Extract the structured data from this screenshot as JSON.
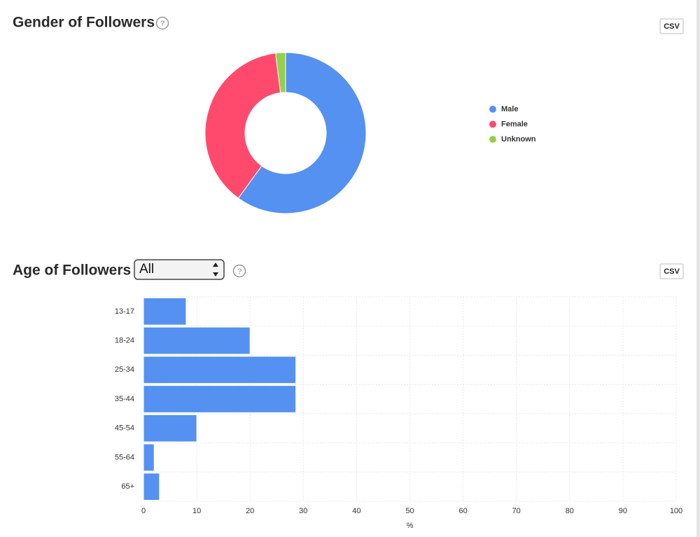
{
  "chart_data": [
    {
      "type": "donut",
      "title": "Gender of Followers",
      "categories": [
        "Male",
        "Female",
        "Unknown"
      ],
      "values": [
        60,
        38,
        2
      ],
      "colors": [
        "#5591f0",
        "#ff4a6e",
        "#94d04a"
      ],
      "legend": "right"
    },
    {
      "type": "bar",
      "orientation": "horizontal",
      "title": "Age of Followers",
      "categories": [
        "13-17",
        "18-24",
        "25-34",
        "35-44",
        "45-54",
        "55-64",
        "65+"
      ],
      "values": [
        8,
        20,
        28.6,
        28.6,
        10,
        2,
        3
      ],
      "color": "#5591f0",
      "xlabel": "%",
      "xlim": [
        0,
        100
      ],
      "xticks": [
        0,
        10,
        20,
        30,
        40,
        50,
        60,
        70,
        80,
        90,
        100
      ],
      "grid": true
    }
  ],
  "controls": {
    "csv_buttons": [
      "CSV",
      "CSV"
    ],
    "age_filter": "All",
    "help_icons": [
      "?",
      "?"
    ]
  }
}
